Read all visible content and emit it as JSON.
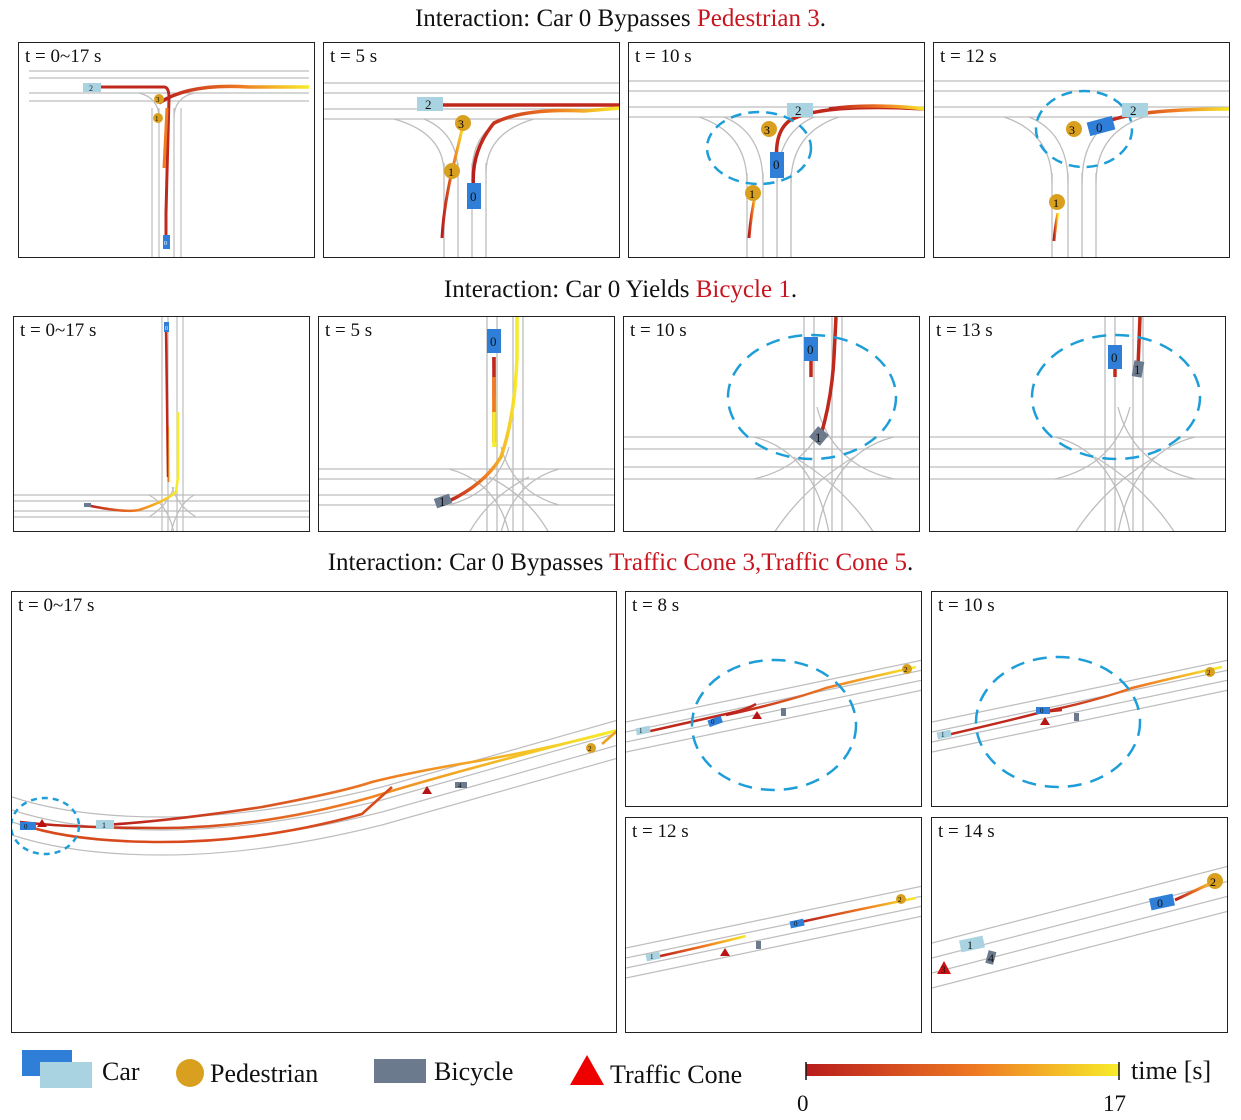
{
  "rows": [
    {
      "title_prefix": "Interaction: Car 0 Bypasses ",
      "title_highlight": "Pedestrian 3",
      "title_suffix": ".",
      "panels": [
        "t = 0~17 s",
        "t = 5 s",
        "t = 10 s",
        "t = 12 s"
      ]
    },
    {
      "title_prefix": "Interaction: Car 0 Yields ",
      "title_highlight": "Bicycle 1",
      "title_suffix": ".",
      "panels": [
        "t = 0~17 s",
        "t = 5 s",
        "t = 10 s",
        "t = 13 s"
      ]
    },
    {
      "title_prefix": "Interaction: Car 0 Bypasses ",
      "title_highlight": "Traffic Cone 3,Traffic Cone 5",
      "title_suffix": ".",
      "panels": [
        "t = 0~17 s",
        "t = 8 s",
        "t = 10 s",
        "t = 12 s",
        "t = 14 s"
      ]
    }
  ],
  "agent_ids": [
    "0",
    "1",
    "2",
    "3",
    "4",
    "5"
  ],
  "legend": {
    "car": "Car",
    "pedestrian": "Pedestrian",
    "bicycle": "Bicycle",
    "cone": "Traffic Cone",
    "time_label": "time [s]",
    "tmin": "0",
    "tmax": "17"
  },
  "colors": {
    "car_dark": "#2f7fd8",
    "car_light": "#a9d3e0",
    "pedestrian": "#d9a020",
    "bicycle": "#6c7a8e",
    "cone": "#e01010",
    "traj_start": "#b81c1c",
    "traj_mid": "#ef7b22",
    "traj_end": "#f7ec2a",
    "highlight": "#c8141e",
    "circle": "#1e9ed8"
  }
}
